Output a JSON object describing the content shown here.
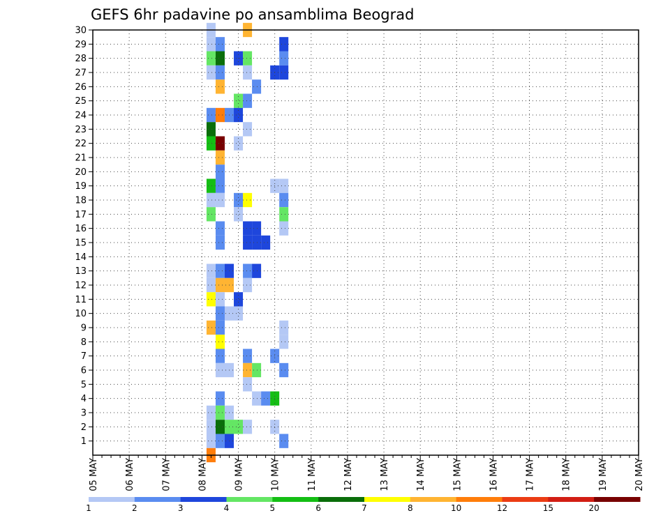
{
  "chart_data": {
    "type": "heatmap",
    "title": "GEFS 6hr padavine po ansamblima Beograd",
    "xlabel": "",
    "ylabel": "",
    "x_ticks": [
      "05 MAY",
      "06 MAY",
      "07 MAY",
      "08 MAY",
      "09 MAY",
      "10 MAY",
      "11 MAY",
      "12 MAY",
      "13 MAY",
      "14 MAY",
      "15 MAY",
      "16 MAY",
      "17 MAY",
      "18 MAY",
      "19 MAY",
      "20 MAY"
    ],
    "y_ticks": [
      "1",
      "2",
      "3",
      "4",
      "5",
      "6",
      "7",
      "8",
      "9",
      "10",
      "11",
      "12",
      "13",
      "14",
      "15",
      "16",
      "17",
      "18",
      "19",
      "20",
      "21",
      "22",
      "23",
      "24",
      "25",
      "26",
      "27",
      "28",
      "29",
      "30"
    ],
    "x_range": [
      0,
      60
    ],
    "y_range": [
      0,
      30
    ],
    "grid": true,
    "colorbar": {
      "levels": [
        "1",
        "2",
        "3",
        "4",
        "5",
        "6",
        "7",
        "8",
        "10",
        "12",
        "15",
        "20"
      ],
      "colors": [
        "#b4c8f5",
        "#5a8cf0",
        "#1e46dc",
        "#64e664",
        "#14be14",
        "#0a6e0a",
        "#ffff00",
        "#ffb432",
        "#ff7d0a",
        "#eb3c14",
        "#d21e14",
        "#780000"
      ]
    },
    "cells": [
      [
        13,
        30,
        0
      ],
      [
        13,
        29,
        0
      ],
      [
        13,
        28,
        3
      ],
      [
        13,
        27,
        0
      ],
      [
        13,
        24,
        1
      ],
      [
        13,
        23,
        5
      ],
      [
        13,
        22,
        4
      ],
      [
        13,
        19,
        4
      ],
      [
        13,
        18,
        0
      ],
      [
        13,
        17,
        3
      ],
      [
        13,
        13,
        0
      ],
      [
        13,
        12,
        0
      ],
      [
        13,
        11,
        6
      ],
      [
        13,
        9,
        7
      ],
      [
        13,
        3,
        0
      ],
      [
        13,
        2,
        0
      ],
      [
        13,
        1,
        0
      ],
      [
        13,
        0,
        8
      ],
      [
        14,
        29,
        1
      ],
      [
        14,
        28,
        5
      ],
      [
        14,
        27,
        1
      ],
      [
        14,
        26,
        7
      ],
      [
        14,
        24,
        8
      ],
      [
        14,
        22,
        11
      ],
      [
        14,
        21,
        7
      ],
      [
        14,
        20,
        1
      ],
      [
        14,
        19,
        1
      ],
      [
        14,
        18,
        0
      ],
      [
        14,
        16,
        1
      ],
      [
        14,
        15,
        1
      ],
      [
        14,
        13,
        1
      ],
      [
        14,
        12,
        7
      ],
      [
        14,
        11,
        0
      ],
      [
        14,
        10,
        1
      ],
      [
        14,
        9,
        1
      ],
      [
        14,
        8,
        6
      ],
      [
        14,
        7,
        1
      ],
      [
        14,
        6,
        0
      ],
      [
        14,
        4,
        1
      ],
      [
        14,
        3,
        3
      ],
      [
        14,
        2,
        5
      ],
      [
        14,
        1,
        1
      ],
      [
        15,
        24,
        1
      ],
      [
        15,
        13,
        2
      ],
      [
        15,
        12,
        7
      ],
      [
        15,
        10,
        0
      ],
      [
        15,
        6,
        0
      ],
      [
        15,
        3,
        0
      ],
      [
        15,
        2,
        3
      ],
      [
        15,
        1,
        2
      ],
      [
        16,
        28,
        2
      ],
      [
        16,
        25,
        3
      ],
      [
        16,
        24,
        2
      ],
      [
        16,
        22,
        0
      ],
      [
        16,
        18,
        1
      ],
      [
        16,
        17,
        0
      ],
      [
        16,
        11,
        2
      ],
      [
        16,
        10,
        0
      ],
      [
        16,
        2,
        3
      ],
      [
        17,
        30,
        7
      ],
      [
        17,
        28,
        3
      ],
      [
        17,
        27,
        0
      ],
      [
        17,
        25,
        1
      ],
      [
        17,
        23,
        0
      ],
      [
        17,
        18,
        6
      ],
      [
        17,
        16,
        2
      ],
      [
        17,
        15,
        2
      ],
      [
        17,
        13,
        1
      ],
      [
        17,
        12,
        0
      ],
      [
        17,
        7,
        1
      ],
      [
        17,
        6,
        7
      ],
      [
        17,
        5,
        0
      ],
      [
        17,
        2,
        0
      ],
      [
        18,
        26,
        1
      ],
      [
        18,
        16,
        2
      ],
      [
        18,
        15,
        2
      ],
      [
        18,
        13,
        2
      ],
      [
        18,
        6,
        3
      ],
      [
        18,
        4,
        0
      ],
      [
        19,
        15,
        2
      ],
      [
        19,
        4,
        1
      ],
      [
        20,
        27,
        2
      ],
      [
        20,
        19,
        0
      ],
      [
        20,
        7,
        1
      ],
      [
        20,
        4,
        4
      ],
      [
        20,
        2,
        0
      ],
      [
        21,
        29,
        2
      ],
      [
        21,
        28,
        1
      ],
      [
        21,
        27,
        2
      ],
      [
        21,
        19,
        0
      ],
      [
        21,
        18,
        1
      ],
      [
        21,
        17,
        3
      ],
      [
        21,
        16,
        0
      ],
      [
        21,
        9,
        0
      ],
      [
        21,
        8,
        0
      ],
      [
        21,
        6,
        1
      ],
      [
        21,
        1,
        1
      ]
    ]
  }
}
